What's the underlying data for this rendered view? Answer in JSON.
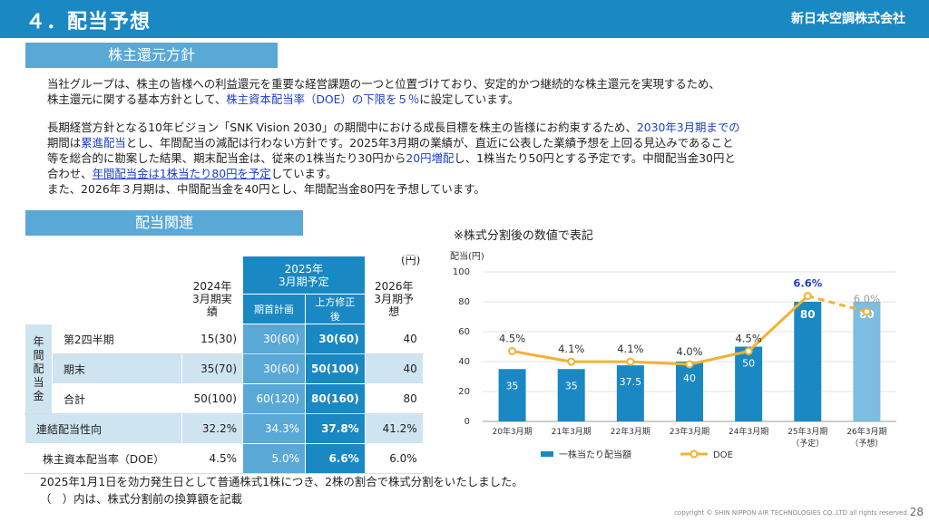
{
  "header": {
    "title": "４．配当予想",
    "company": "新日本空調株式会社"
  },
  "section1": {
    "heading": "株主還元方針",
    "para1": {
      "a": "当社グループは、株主の皆様への利益還元を重要な経営課題の一つと位置づけており、安定的かつ継続的な株主還元を実現するため、",
      "b": "株主還元に関する基本方針として、",
      "c": "株主資本配当率（DOE）の下限を５％",
      "d": "に設定しています。"
    },
    "para2": {
      "a": "長期経営方針となる10年ビジョン「SNK Vision 2030」の期間中における成長目標を株主の皆様にお約束するため、",
      "b": "2030年3月期までの",
      "c": "期間は",
      "d": "累進配当",
      "e": "とし、年間配当の減配は行わない方針です。2025年3月期の業績が、直近に公表した業績予想を上回る見込みであること",
      "f": "等を総合的に勘案した結果、期末配当金は、従来の1株当たり30円から",
      "g": "20円増配",
      "h": "し、1株当たり50円とする予定です。中間配当金30円と",
      "i": "合わせ、",
      "j": "年間配当金は1株当たり80円を予定",
      "k": "しています。",
      "l": "また、2026年３月期は、中間配当金を40円とし、年間配当金80円を予想しています。"
    }
  },
  "section2": {
    "heading": "配当関連",
    "unit": "(円)",
    "table": {
      "head": {
        "col1": [
          "2024年",
          "3月期実績"
        ],
        "col2": [
          "2025年",
          "3月期予定"
        ],
        "col2_sub": [
          "期首計画",
          "上方修正後"
        ],
        "col3": [
          "2026年",
          "3月期予想"
        ]
      },
      "group_label": [
        "年",
        "間",
        "配",
        "当",
        "金"
      ],
      "rows": [
        {
          "label": "第2四半期",
          "v2024": "15(30)",
          "plan": "30(60)",
          "revised": "30(60)",
          "v2026": "40"
        },
        {
          "label": "期末",
          "v2024": "35(70)",
          "plan": "30(60)",
          "revised": "50(100)",
          "v2026": "40"
        },
        {
          "label": "合計",
          "v2024": "50(100)",
          "plan": "60(120)",
          "revised": "80(160)",
          "v2026": "80"
        },
        {
          "label": "連結配当性向",
          "v2024": "32.2%",
          "plan": "34.3%",
          "revised": "37.8%",
          "v2026": "41.2%"
        },
        {
          "label": "株主資本配当率（DOE）",
          "v2024": "4.5%",
          "plan": "5.0%",
          "revised": "6.6%",
          "v2026": "6.0%"
        }
      ]
    }
  },
  "chart_note": "※株式分割後の数値で表記",
  "chart_data": {
    "type": "bar",
    "ylabel": "配当(円)",
    "ylim": [
      0,
      100
    ],
    "yticks": [
      "0",
      "20",
      "40",
      "60",
      "80",
      "100"
    ],
    "categories": [
      "20年3月期",
      "21年3月期",
      "22年3月期",
      "23年3月期",
      "24年3月期",
      "25年3月期",
      "26年3月期"
    ],
    "category_sub": [
      "",
      "",
      "",
      "",
      "",
      "（予定）",
      "（予想）"
    ],
    "series": [
      {
        "name": "一株当たり配当額",
        "values": [
          35,
          35,
          37.5,
          40,
          50,
          80,
          80
        ],
        "labels": [
          "35",
          "35",
          "37.5",
          "40",
          "50",
          "80",
          "80"
        ]
      },
      {
        "name": "DOE",
        "values": [
          4.5,
          4.1,
          4.1,
          4.0,
          4.5,
          6.6,
          6.0
        ],
        "labels": [
          "4.5%",
          "4.1%",
          "4.1%",
          "4.0%",
          "4.5%",
          "6.6%",
          "6.0%"
        ]
      }
    ],
    "colors": {
      "bar": "#1a88c3",
      "bar_forecast": "#7cbde0",
      "line": "#f2b233",
      "highlight": "#1b3fc9",
      "forecast_label": "#9a9a9a"
    },
    "grid": true,
    "legend": "bottom"
  },
  "footer": {
    "note1": "2025年1月1日を効力発生日として普通株式1株につき、2株の割合で株式分割をいたしました。",
    "note2": "（　）内は、株式分割前の換算額を記載",
    "copyright": "copyright © SHIN NIPPON AIR TECHNOLOGIES CO.,LTD  all rights reserved.",
    "page": "28"
  }
}
